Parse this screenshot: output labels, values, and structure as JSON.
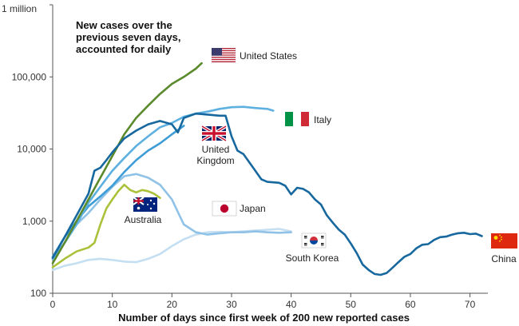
{
  "chart_data": {
    "type": "line",
    "annotation": [
      "New cases over the",
      "previous seven days,",
      "accounted for daily"
    ],
    "xlabel": "Number of days since first week of 200 new reported cases",
    "ylabel": "",
    "y_scale": "log",
    "xlim": [
      0,
      73
    ],
    "ylim": [
      100,
      1000000
    ],
    "x_ticks": [
      0,
      10,
      20,
      30,
      40,
      50,
      60,
      70
    ],
    "y_ticks": [
      {
        "value": 100,
        "label": "100"
      },
      {
        "value": 1000,
        "label": "1,000"
      },
      {
        "value": 10000,
        "label": "10,000"
      },
      {
        "value": 100000,
        "label": "100,000"
      },
      {
        "value": 1000000,
        "label": "1 million"
      }
    ],
    "grid": false,
    "series": [
      {
        "name": "South Korea",
        "flag": "south-korea",
        "color": "#c4def2",
        "points": [
          [
            0,
            210
          ],
          [
            2,
            240
          ],
          [
            4,
            260
          ],
          [
            6,
            290
          ],
          [
            8,
            300
          ],
          [
            10,
            290
          ],
          [
            12,
            275
          ],
          [
            14,
            270
          ],
          [
            16,
            300
          ],
          [
            18,
            350
          ],
          [
            20,
            450
          ],
          [
            22,
            560
          ],
          [
            24,
            650
          ],
          [
            26,
            700
          ],
          [
            28,
            710
          ],
          [
            30,
            700
          ],
          [
            32,
            720
          ],
          [
            34,
            740
          ],
          [
            36,
            760
          ],
          [
            38,
            780
          ],
          [
            40,
            720
          ]
        ]
      },
      {
        "name": "Japan",
        "flag": "japan",
        "color": "#8fc2e6",
        "points": [
          [
            0,
            300
          ],
          [
            2,
            500
          ],
          [
            4,
            900
          ],
          [
            6,
            1300
          ],
          [
            8,
            2000
          ],
          [
            10,
            3000
          ],
          [
            12,
            4200
          ],
          [
            14,
            4500
          ],
          [
            16,
            4000
          ],
          [
            18,
            3200
          ],
          [
            20,
            2000
          ],
          [
            22,
            900
          ],
          [
            24,
            700
          ],
          [
            26,
            650
          ],
          [
            28,
            680
          ],
          [
            30,
            700
          ],
          [
            32,
            700
          ],
          [
            34,
            720
          ],
          [
            36,
            700
          ],
          [
            38,
            690
          ],
          [
            40,
            700
          ]
        ]
      },
      {
        "name": "Australia",
        "flag": "australia",
        "color": "#a9c23a",
        "points": [
          [
            0,
            230
          ],
          [
            2,
            300
          ],
          [
            4,
            380
          ],
          [
            6,
            430
          ],
          [
            7,
            500
          ],
          [
            8,
            900
          ],
          [
            9,
            1500
          ],
          [
            10,
            2000
          ],
          [
            11,
            2600
          ],
          [
            12,
            3200
          ],
          [
            13,
            2700
          ],
          [
            14,
            2500
          ],
          [
            15,
            2700
          ],
          [
            16,
            2600
          ],
          [
            17,
            2400
          ],
          [
            18,
            2100
          ]
        ]
      },
      {
        "name": "United Kingdom",
        "flag": "united-kingdom",
        "color": "#3e9cd6",
        "points": [
          [
            0,
            320
          ],
          [
            2,
            600
          ],
          [
            4,
            1000
          ],
          [
            6,
            1600
          ],
          [
            8,
            2200
          ],
          [
            10,
            3100
          ],
          [
            12,
            4800
          ],
          [
            14,
            7000
          ],
          [
            16,
            9500
          ],
          [
            18,
            12000
          ],
          [
            20,
            16000
          ],
          [
            22,
            21000
          ]
        ]
      },
      {
        "name": "Italy",
        "flag": "italy",
        "color": "#5eb0e0",
        "points": [
          [
            0,
            300
          ],
          [
            2,
            500
          ],
          [
            4,
            900
          ],
          [
            6,
            1800
          ],
          [
            8,
            3000
          ],
          [
            10,
            5000
          ],
          [
            12,
            7500
          ],
          [
            14,
            11000
          ],
          [
            16,
            15000
          ],
          [
            18,
            20000
          ],
          [
            20,
            23000
          ],
          [
            22,
            28000
          ],
          [
            24,
            31000
          ],
          [
            26,
            33000
          ],
          [
            28,
            36000
          ],
          [
            30,
            38000
          ],
          [
            32,
            38500
          ],
          [
            34,
            37000
          ],
          [
            36,
            36000
          ],
          [
            37,
            34000
          ]
        ]
      },
      {
        "name": "United States",
        "flag": "united-states",
        "color": "#5a8a2c",
        "points": [
          [
            0,
            260
          ],
          [
            2,
            500
          ],
          [
            4,
            1000
          ],
          [
            6,
            2000
          ],
          [
            8,
            4000
          ],
          [
            10,
            8000
          ],
          [
            12,
            16000
          ],
          [
            14,
            27000
          ],
          [
            16,
            40000
          ],
          [
            18,
            58000
          ],
          [
            20,
            80000
          ],
          [
            22,
            100000
          ],
          [
            24,
            130000
          ],
          [
            25,
            155000
          ]
        ]
      },
      {
        "name": "China",
        "flag": "china",
        "color": "#17689e",
        "points": [
          [
            0,
            310
          ],
          [
            2,
            600
          ],
          [
            4,
            1200
          ],
          [
            6,
            2400
          ],
          [
            7,
            5000
          ],
          [
            8,
            5500
          ],
          [
            9,
            7000
          ],
          [
            10,
            9000
          ],
          [
            12,
            14000
          ],
          [
            14,
            18000
          ],
          [
            16,
            22000
          ],
          [
            18,
            24500
          ],
          [
            20,
            22000
          ],
          [
            21,
            17000
          ],
          [
            22,
            27000
          ],
          [
            24,
            31000
          ],
          [
            26,
            30000
          ],
          [
            28,
            29000
          ],
          [
            29,
            29000
          ],
          [
            30,
            15000
          ],
          [
            31,
            9500
          ],
          [
            32,
            8500
          ],
          [
            33,
            6500
          ],
          [
            34,
            5000
          ],
          [
            35,
            3800
          ],
          [
            36,
            3500
          ],
          [
            38,
            3400
          ],
          [
            39,
            3100
          ],
          [
            40,
            2350
          ],
          [
            41,
            2900
          ],
          [
            42,
            2800
          ],
          [
            43,
            2500
          ],
          [
            44,
            2000
          ],
          [
            45,
            1700
          ],
          [
            46,
            1200
          ],
          [
            47,
            950
          ],
          [
            48,
            760
          ],
          [
            49,
            650
          ],
          [
            50,
            490
          ],
          [
            51,
            360
          ],
          [
            52,
            250
          ],
          [
            53,
            210
          ],
          [
            54,
            185
          ],
          [
            55,
            180
          ],
          [
            56,
            190
          ],
          [
            57,
            225
          ],
          [
            58,
            270
          ],
          [
            59,
            320
          ],
          [
            60,
            350
          ],
          [
            61,
            420
          ],
          [
            62,
            470
          ],
          [
            63,
            480
          ],
          [
            64,
            550
          ],
          [
            65,
            600
          ],
          [
            66,
            610
          ],
          [
            67,
            650
          ],
          [
            68,
            680
          ],
          [
            69,
            690
          ],
          [
            70,
            660
          ],
          [
            71,
            670
          ],
          [
            72,
            620
          ]
        ]
      }
    ]
  }
}
